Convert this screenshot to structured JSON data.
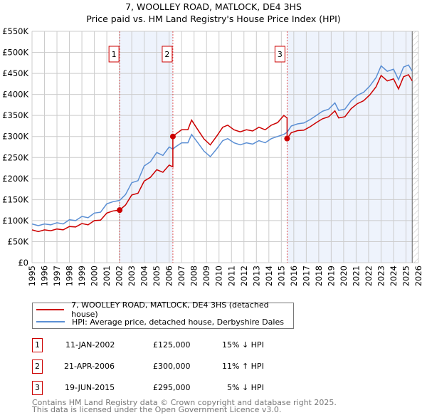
{
  "chart_data": {
    "type": "line",
    "title": "7, WOOLLEY ROAD, MATLOCK, DE4 3HS",
    "subtitle": "Price paid vs. HM Land Registry's House Price Index (HPI)",
    "xlim": [
      1995,
      2026
    ],
    "ylim": [
      0,
      550000
    ],
    "y_ticks": [
      {
        "v": 0,
        "label": "£0"
      },
      {
        "v": 50000,
        "label": "£50K"
      },
      {
        "v": 100000,
        "label": "£100K"
      },
      {
        "v": 150000,
        "label": "£150K"
      },
      {
        "v": 200000,
        "label": "£200K"
      },
      {
        "v": 250000,
        "label": "£250K"
      },
      {
        "v": 300000,
        "label": "£300K"
      },
      {
        "v": 350000,
        "label": "£350K"
      },
      {
        "v": 400000,
        "label": "£400K"
      },
      {
        "v": 450000,
        "label": "£450K"
      },
      {
        "v": 500000,
        "label": "£500K"
      },
      {
        "v": 550000,
        "label": "£550K"
      }
    ],
    "x_ticks": [
      "1995",
      "1996",
      "1997",
      "1998",
      "1999",
      "2000",
      "2001",
      "2002",
      "2003",
      "2004",
      "2005",
      "2006",
      "2007",
      "2008",
      "2009",
      "2010",
      "2011",
      "2012",
      "2013",
      "2014",
      "2015",
      "2016",
      "2017",
      "2018",
      "2019",
      "2020",
      "2021",
      "2022",
      "2023",
      "2024",
      "2025",
      "2026"
    ],
    "grid": true,
    "shaded_ranges": [
      [
        2002.03,
        2006.3
      ],
      [
        2015.46,
        2025.5
      ]
    ],
    "hatched_from": 2025.5,
    "series": [
      {
        "name": "7, WOOLLEY ROAD, MATLOCK, DE4 3HS (detached house)",
        "color": "#cc0000",
        "x": [
          1995,
          1995.5,
          1996,
          1996.5,
          1997,
          1997.5,
          1998,
          1998.5,
          1999,
          1999.5,
          2000,
          2000.5,
          2001,
          2001.5,
          2002.03,
          2002.5,
          2003,
          2003.5,
          2004,
          2004.5,
          2005,
          2005.5,
          2006,
          2006.3,
          2006.3,
          2006.5,
          2007,
          2007.5,
          2007.8,
          2008.3,
          2008.8,
          2009.3,
          2009.8,
          2010.3,
          2010.7,
          2011.2,
          2011.7,
          2012.2,
          2012.7,
          2013.2,
          2013.7,
          2014.2,
          2014.7,
          2015.2,
          2015.46,
          2015.46,
          2015.8,
          2016.3,
          2016.8,
          2017.3,
          2017.8,
          2018.3,
          2018.8,
          2019.3,
          2019.6,
          2020.1,
          2020.6,
          2021.1,
          2021.6,
          2022.1,
          2022.6,
          2023.0,
          2023.5,
          2024.0,
          2024.4,
          2024.8,
          2025.2,
          2025.5
        ],
        "y": [
          78000,
          74000,
          78000,
          76000,
          80000,
          78000,
          86000,
          85000,
          93000,
          90000,
          100000,
          101000,
          118000,
          123000,
          125000,
          137000,
          161000,
          165000,
          194000,
          203000,
          221000,
          215000,
          232000,
          228000,
          300000,
          305000,
          316000,
          316000,
          339000,
          316000,
          294000,
          280000,
          300000,
          322000,
          327000,
          316000,
          311000,
          316000,
          313000,
          322000,
          316000,
          327000,
          333000,
          350000,
          344000,
          295000,
          309000,
          314000,
          315000,
          323000,
          333000,
          342000,
          347000,
          361000,
          344000,
          347000,
          366000,
          378000,
          385000,
          399000,
          418000,
          445000,
          432000,
          437000,
          413000,
          442000,
          447000,
          432000
        ]
      },
      {
        "name": "HPI: Average price, detached house, Derbyshire Dales",
        "color": "#5b8fd4",
        "x": [
          1995,
          1995.5,
          1996,
          1996.5,
          1997,
          1997.5,
          1998,
          1998.5,
          1999,
          1999.5,
          2000,
          2000.5,
          2001,
          2001.5,
          2002.03,
          2002.5,
          2003,
          2003.5,
          2004,
          2004.5,
          2005,
          2005.5,
          2006,
          2006.3,
          2006.5,
          2007,
          2007.5,
          2007.8,
          2008.3,
          2008.8,
          2009.3,
          2009.8,
          2010.3,
          2010.7,
          2011.2,
          2011.7,
          2012.2,
          2012.7,
          2013.2,
          2013.7,
          2014.2,
          2014.7,
          2015.2,
          2015.46,
          2015.8,
          2016.3,
          2016.8,
          2017.3,
          2017.8,
          2018.3,
          2018.8,
          2019.3,
          2019.6,
          2020.1,
          2020.6,
          2021.1,
          2021.6,
          2022.1,
          2022.6,
          2023.0,
          2023.5,
          2024.0,
          2024.4,
          2024.8,
          2025.2,
          2025.5
        ],
        "y": [
          92000,
          88000,
          92000,
          90000,
          95000,
          92000,
          102000,
          100000,
          110000,
          107000,
          118000,
          120000,
          140000,
          145000,
          148000,
          162000,
          190000,
          195000,
          230000,
          240000,
          262000,
          255000,
          275000,
          270000,
          275000,
          285000,
          285000,
          305000,
          285000,
          265000,
          252000,
          270000,
          290000,
          295000,
          285000,
          280000,
          285000,
          282000,
          290000,
          285000,
          295000,
          300000,
          305000,
          310000,
          325000,
          330000,
          332000,
          340000,
          350000,
          360000,
          365000,
          380000,
          362000,
          365000,
          385000,
          398000,
          405000,
          420000,
          440000,
          468000,
          455000,
          460000,
          435000,
          465000,
          470000,
          455000
        ]
      }
    ],
    "sales": [
      {
        "n": "1",
        "x": 2002.03,
        "y": 125000,
        "date": "11-JAN-2002",
        "price": "£125,000",
        "hpi": "15% ↓ HPI"
      },
      {
        "n": "2",
        "x": 2006.3,
        "y": 300000,
        "date": "21-APR-2006",
        "price": "£300,000",
        "hpi": "11% ↑ HPI"
      },
      {
        "n": "3",
        "x": 2015.46,
        "y": 295000,
        "date": "19-JUN-2015",
        "price": "£295,000",
        "hpi": "5% ↓ HPI"
      }
    ]
  },
  "footer": {
    "line1": "Contains HM Land Registry data © Crown copyright and database right 2025.",
    "line2": "This data is licensed under the Open Government Licence v3.0."
  }
}
